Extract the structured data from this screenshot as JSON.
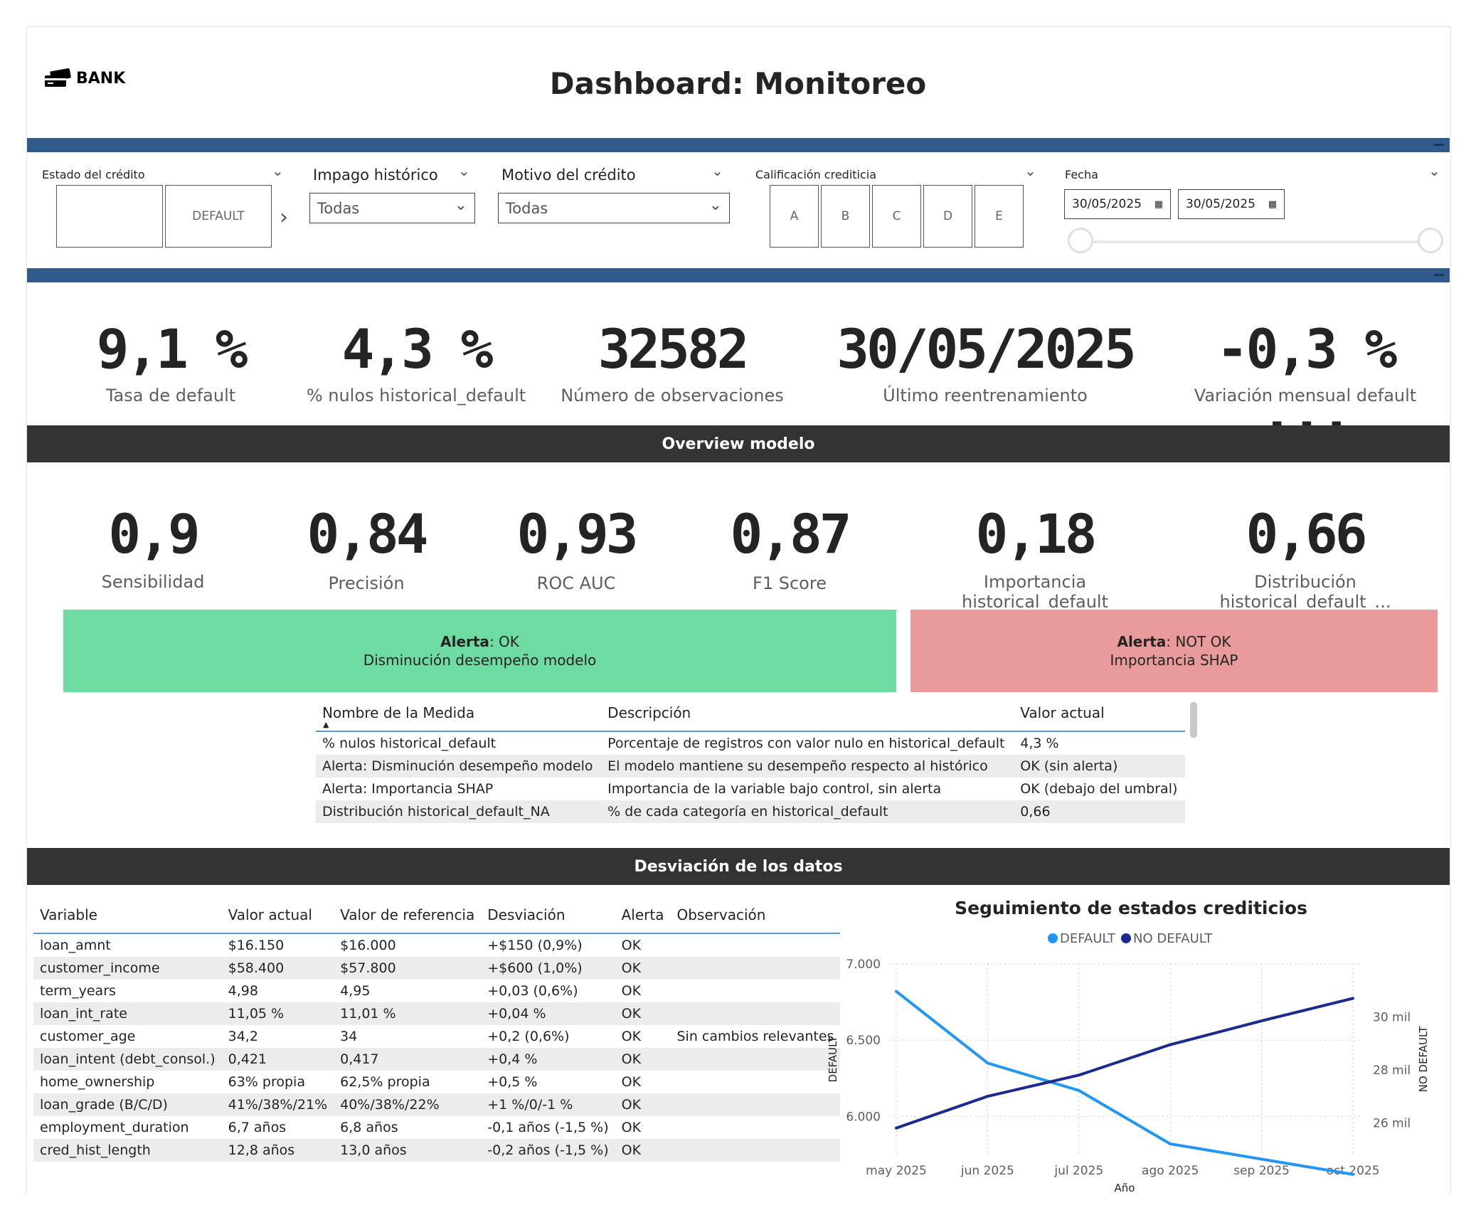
{
  "header": {
    "logo_text": "BANK",
    "title": "Dashboard: Monitoreo"
  },
  "filters": {
    "estado": {
      "label": "Estado del crédito",
      "tiles": [
        "",
        "DEFAULT"
      ]
    },
    "impago": {
      "label": "Impago histórico",
      "value": "Todas"
    },
    "motivo": {
      "label": "Motivo del crédito",
      "value": "Todas"
    },
    "calificacion": {
      "label": "Calificación crediticia",
      "tiles": [
        "A",
        "B",
        "C",
        "D",
        "E"
      ]
    },
    "fecha": {
      "label": "Fecha",
      "start": "30/05/2025",
      "end": "30/05/2025"
    }
  },
  "kpis": [
    {
      "value": "9,1 %",
      "label": "Tasa de default"
    },
    {
      "value": "4,3 %",
      "label": "% nulos historical_default"
    },
    {
      "value": "32582",
      "label": "Número de observaciones"
    },
    {
      "value": "30/05/2025",
      "label": "Último reentrenamiento"
    },
    {
      "value": "-0,3 % ...",
      "label": "Variación mensual default"
    }
  ],
  "overview": {
    "title": "Overview modelo",
    "metrics": [
      {
        "value": "0,9",
        "label": "Sensibilidad"
      },
      {
        "value": "0,84",
        "label": "Precisión"
      },
      {
        "value": "0,93",
        "label": "ROC AUC"
      },
      {
        "value": "0,87",
        "label": "F1 Score"
      },
      {
        "value": "0,18",
        "label": "Importancia historical_default"
      },
      {
        "value": "0,66",
        "label": "Distribución historical_default_..."
      }
    ],
    "alerts": [
      {
        "bold": "Alerta",
        "status": ": OK",
        "text": "Disminución desempeño modelo",
        "color": "#6ddba2"
      },
      {
        "bold": "Alerta",
        "status": ": NOT OK",
        "text": "Importancia SHAP",
        "color": "#e89b9a"
      }
    ],
    "measures_table": {
      "headers": [
        "Nombre de la Medida",
        "Descripción",
        "Valor actual"
      ],
      "rows": [
        [
          "% nulos historical_default",
          "Porcentaje de registros con valor nulo en historical_default",
          "4,3 %"
        ],
        [
          "Alerta: Disminución desempeño modelo",
          "El modelo mantiene su desempeño respecto al histórico",
          "OK (sin alerta)"
        ],
        [
          "Alerta: Importancia SHAP",
          "Importancia de la variable bajo control, sin alerta",
          "OK (debajo del umbral)"
        ],
        [
          "Distribución historical_default_NA",
          "% de cada categoría en historical_default",
          "0,66"
        ]
      ]
    }
  },
  "deviation": {
    "title": "Desviación de los datos",
    "table": {
      "headers": [
        "Variable",
        "Valor actual",
        "Valor de referencia",
        "Desviación",
        "Alerta",
        "Observación"
      ],
      "rows": [
        [
          "loan_amnt",
          "$16.150",
          "$16.000",
          "+$150 (0,9%)",
          "OK",
          ""
        ],
        [
          "customer_income",
          "$58.400",
          "$57.800",
          "+$600 (1,0%)",
          "OK",
          ""
        ],
        [
          "term_years",
          "4,98",
          "4,95",
          "+0,03 (0,6%)",
          "OK",
          ""
        ],
        [
          "loan_int_rate",
          "11,05 %",
          "11,01 %",
          "+0,04 %",
          "OK",
          ""
        ],
        [
          "customer_age",
          "34,2",
          "34",
          "+0,2 (0,6%)",
          "OK",
          "Sin cambios relevantes"
        ],
        [
          "loan_intent (debt_consol.)",
          "0,421",
          "0,417",
          "+0,4 %",
          "OK",
          ""
        ],
        [
          "home_ownership",
          "63% propia",
          "62,5% propia",
          "+0,5 %",
          "OK",
          ""
        ],
        [
          "loan_grade (B/C/D)",
          "41%/38%/21%",
          "40%/38%/22%",
          "+1 %/0/-1 %",
          "OK",
          ""
        ],
        [
          "employment_duration",
          "6,7 años",
          "6,8 años",
          "-0,1 años (-1,5 %)",
          "OK",
          ""
        ],
        [
          "cred_hist_length",
          "12,8 años",
          "13,0 años",
          "-0,2 años (-1,5 %)",
          "OK",
          ""
        ]
      ]
    }
  },
  "chart_data": {
    "type": "line",
    "title": "Seguimiento de estados crediticios",
    "xlabel": "Año",
    "ylabel": "DEFAULT",
    "y2label": "NO DEFAULT",
    "categories": [
      "may 2025",
      "jun 2025",
      "jul 2025",
      "ago 2025",
      "sep 2025",
      "oct 2025"
    ],
    "ylim": [
      5750,
      7000
    ],
    "y_ticks": [
      6000,
      6500,
      7000
    ],
    "y_tick_labels": [
      "6.000",
      "6.500",
      "7.000"
    ],
    "y2lim": [
      24800,
      32000
    ],
    "y2_ticks": [
      26000,
      28000,
      30000
    ],
    "y2_tick_labels": [
      "26 mil",
      "28 mil",
      "30 mil"
    ],
    "legend": [
      "DEFAULT",
      "NO DEFAULT"
    ],
    "series": [
      {
        "name": "DEFAULT",
        "axis": "left",
        "color": "#2196f3",
        "values": [
          6820,
          6350,
          6170,
          5820,
          5720,
          5620
        ]
      },
      {
        "name": "NO DEFAULT",
        "axis": "right",
        "color": "#1a2a8f",
        "values": [
          25800,
          27000,
          27800,
          28950,
          29850,
          30700
        ]
      }
    ]
  }
}
